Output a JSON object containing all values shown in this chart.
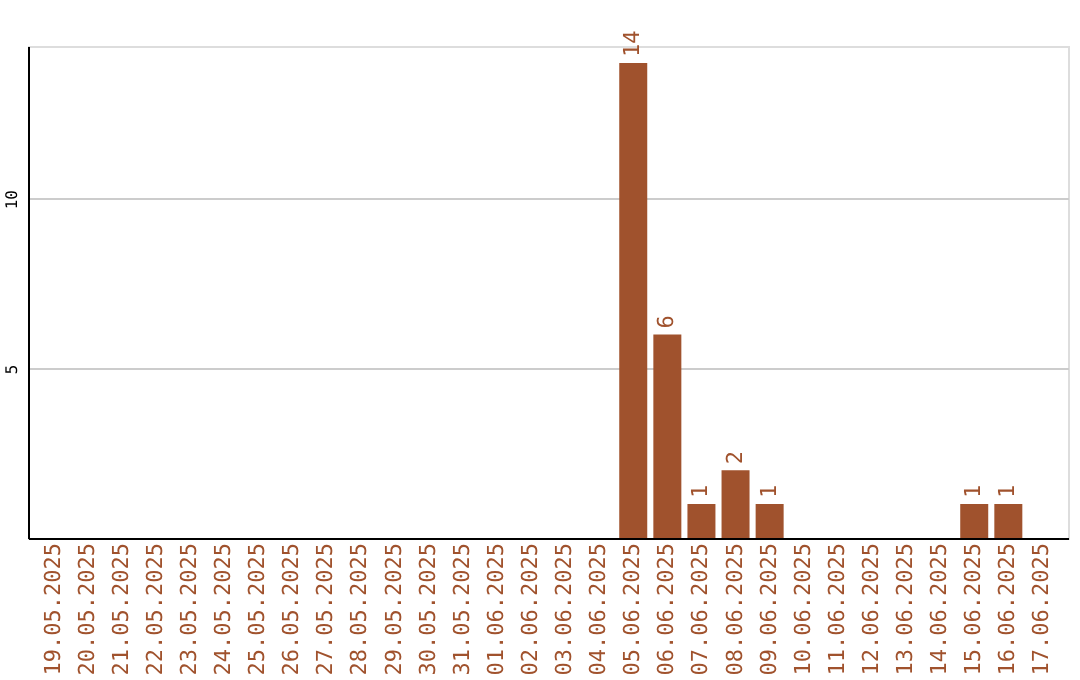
{
  "chart_data": {
    "type": "bar",
    "categories": [
      "19.05.2025",
      "20.05.2025",
      "21.05.2025",
      "22.05.2025",
      "23.05.2025",
      "24.05.2025",
      "25.05.2025",
      "26.05.2025",
      "27.05.2025",
      "28.05.2025",
      "29.05.2025",
      "30.05.2025",
      "31.05.2025",
      "01.06.2025",
      "02.06.2025",
      "03.06.2025",
      "04.06.2025",
      "05.06.2025",
      "06.06.2025",
      "07.06.2025",
      "08.06.2025",
      "09.06.2025",
      "10.06.2025",
      "11.06.2025",
      "12.06.2025",
      "13.06.2025",
      "14.06.2025",
      "15.06.2025",
      "16.06.2025",
      "17.06.2025"
    ],
    "values": [
      0,
      0,
      0,
      0,
      0,
      0,
      0,
      0,
      0,
      0,
      0,
      0,
      0,
      0,
      0,
      0,
      0,
      14,
      6,
      1,
      2,
      1,
      0,
      0,
      0,
      0,
      0,
      1,
      1,
      0
    ],
    "value_labels": [
      null,
      null,
      null,
      null,
      null,
      null,
      null,
      null,
      null,
      null,
      null,
      null,
      null,
      null,
      null,
      null,
      null,
      "14",
      "6",
      "1",
      "2",
      "1",
      null,
      null,
      null,
      null,
      null,
      "1",
      "1",
      null
    ],
    "color": "#a0522d",
    "ylim": [
      0,
      14.5
    ],
    "yticks": [
      5,
      10
    ],
    "grid": "y"
  }
}
